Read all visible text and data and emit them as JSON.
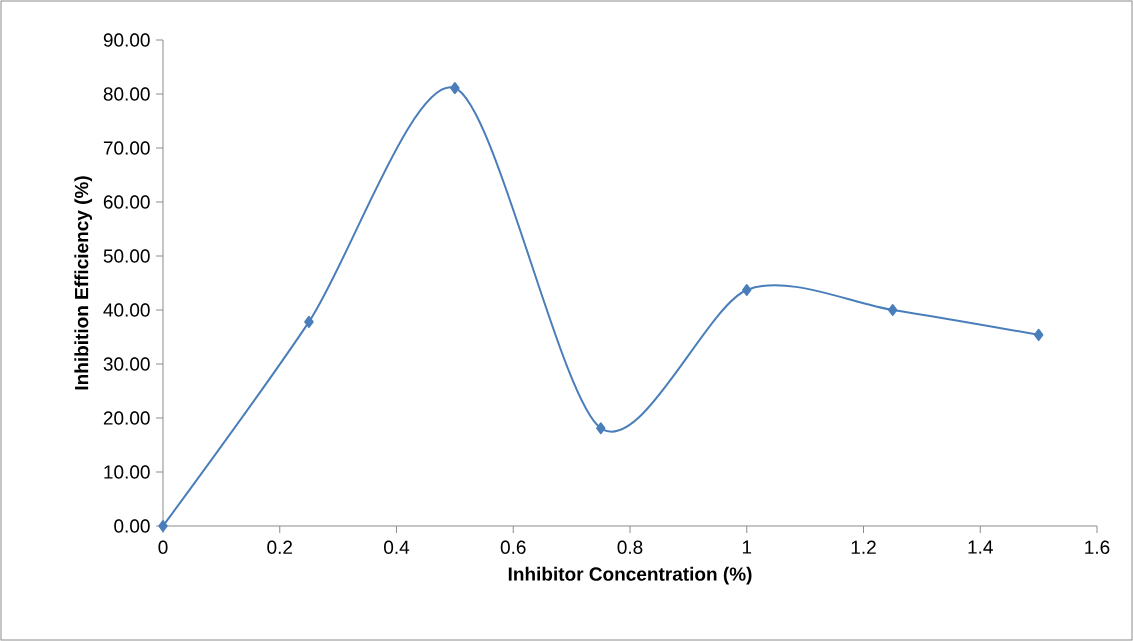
{
  "chart_data": {
    "type": "line",
    "xlabel": "Inhibitor Concentration (%)",
    "ylabel": "Inhibition Efficiency (%)",
    "x": [
      0,
      0.25,
      0.5,
      0.75,
      1,
      1.25,
      1.5
    ],
    "series": [
      {
        "color": "#4a7ebb",
        "values": [
          0,
          37.8,
          81.1,
          18.1,
          43.7,
          40.0,
          35.4
        ]
      }
    ],
    "xlim": [
      0,
      1.6
    ],
    "ylim": [
      0,
      90
    ],
    "xticks": [
      0,
      0.2,
      0.4,
      0.6,
      0.8,
      1,
      1.2,
      1.4,
      1.6
    ],
    "yticks": [
      {
        "value": 0,
        "label": "0.00"
      },
      {
        "value": 10,
        "label": "10.00"
      },
      {
        "value": 20,
        "label": "20.00"
      },
      {
        "value": 30,
        "label": "30.00"
      },
      {
        "value": 40,
        "label": "40.00"
      },
      {
        "value": 50,
        "label": "50.00"
      },
      {
        "value": 60,
        "label": "60.00"
      },
      {
        "value": 70,
        "label": "70.00"
      },
      {
        "value": 80,
        "label": "80.00"
      },
      {
        "value": 90,
        "label": "90.00"
      }
    ],
    "marker": "diamond",
    "line_style": "solid"
  }
}
